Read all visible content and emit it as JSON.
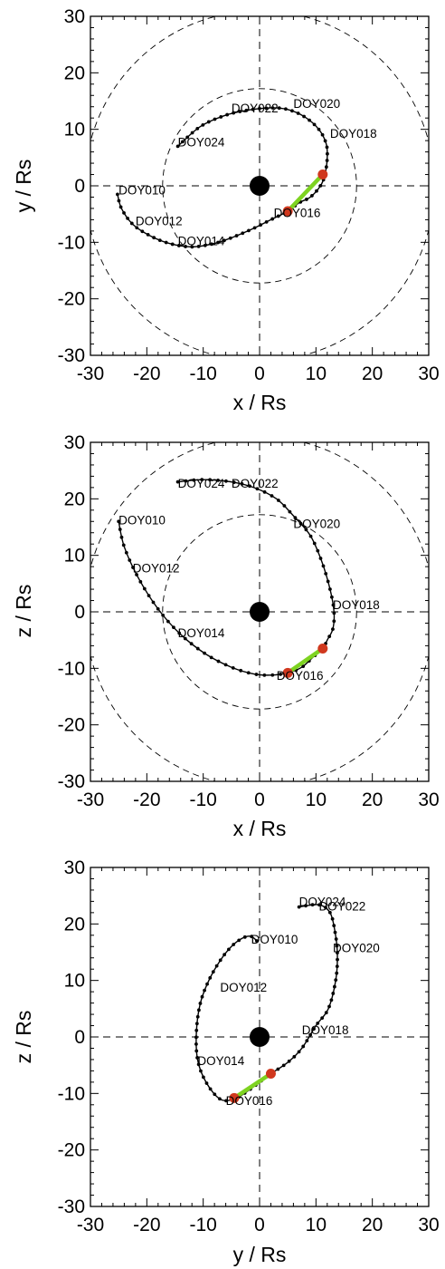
{
  "chart_data": [
    {
      "type": "scatter",
      "panel": "x-y",
      "xlabel": "x / Rs",
      "ylabel": "y / Rs",
      "xlim": [
        -30,
        30
      ],
      "ylim": [
        -30,
        30
      ],
      "xticks": [
        "-30",
        "-20",
        "-10",
        "0",
        "10",
        "20",
        "30"
      ],
      "yticks": [
        "-30",
        "-20",
        "-10",
        "0",
        "10",
        "20",
        "30"
      ],
      "orbit": {
        "x": [
          -14.5,
          -10.5,
          -6.0,
          -2.0,
          2.0,
          5.0,
          8.0,
          10.5,
          11.8,
          12.0,
          11.6,
          10.8,
          9.0,
          7.0,
          5.0,
          2.0,
          -1.0,
          -4.5,
          -8.0,
          -12.0,
          -16.0,
          -19.5,
          -22.5,
          -24.5,
          -25.2,
          -24.5,
          -21.5,
          -17.5,
          -13.0,
          -9.0,
          -4.5,
          0.0,
          3.0,
          5.0,
          7.0,
          9.0,
          10.5,
          11.2
        ],
        "y": [
          7.0,
          10.5,
          12.5,
          13.4,
          13.8,
          13.5,
          12.2,
          10.0,
          7.5,
          5.0,
          2.0,
          0.0,
          -2.0,
          -3.0,
          -4.5,
          -6.0,
          -7.5,
          -9.0,
          -10.2,
          -10.8,
          -10.2,
          -8.8,
          -6.8,
          -4.0,
          -1.5,
          -1.5,
          -4.0,
          -6.8,
          -8.8,
          -10.2,
          -10.8,
          -7.5,
          -6.0,
          -4.5,
          -3.0,
          -1.5,
          0.5,
          2.0
        ],
        "path_order": [
          0,
          1,
          2,
          3,
          4,
          5,
          6,
          7,
          8,
          9,
          10,
          11,
          12,
          13,
          14,
          15,
          16,
          17,
          18,
          19,
          20,
          21,
          22,
          23,
          24
        ]
      },
      "highlight_segment": {
        "x": [
          5.0,
          11.2
        ],
        "y": [
          -4.5,
          2.0
        ],
        "color": "#7ed321"
      },
      "markers": [
        {
          "x": 11.2,
          "y": 2.0,
          "color": "#d0381e"
        },
        {
          "x": 5.0,
          "y": -4.5,
          "color": "#d0381e"
        }
      ],
      "labels": [
        {
          "text": "DOY024",
          "x": -14.5,
          "y": 7.0
        },
        {
          "text": "DOY022",
          "x": -5.0,
          "y": 13.0
        },
        {
          "text": "DOY020",
          "x": 6.0,
          "y": 13.8
        },
        {
          "text": "DOY018",
          "x": 12.5,
          "y": 8.5
        },
        {
          "text": "DOY010",
          "x": -25.0,
          "y": -1.5
        },
        {
          "text": "DOY012",
          "x": -22.0,
          "y": -7.0
        },
        {
          "text": "DOY014",
          "x": -14.5,
          "y": -10.5
        },
        {
          "text": "DOY016",
          "x": 2.5,
          "y": -5.5
        }
      ],
      "planet_color": "#000000",
      "guide_curves": "dashed"
    },
    {
      "type": "scatter",
      "panel": "x-z",
      "xlabel": "x / Rs",
      "ylabel": "z / Rs",
      "xlim": [
        -30,
        30
      ],
      "ylim": [
        -30,
        30
      ],
      "xticks": [
        "-30",
        "-20",
        "-10",
        "0",
        "10",
        "20",
        "30"
      ],
      "yticks": [
        "-30",
        "-20",
        "-10",
        "0",
        "10",
        "20",
        "30"
      ],
      "orbit": {
        "x": [
          -14.5,
          -10.0,
          -5.0,
          -1.0,
          3.0,
          6.0,
          9.0,
          11.0,
          12.5,
          13.2,
          13.0,
          12.0,
          11.2,
          9.5,
          7.5,
          5.0,
          2.0,
          -1.0,
          -5.0,
          -9.5,
          -14.0,
          -18.0,
          -21.5,
          -24.0,
          -25.0
        ],
        "y": [
          23.0,
          23.4,
          23.0,
          22.0,
          20.0,
          17.0,
          13.5,
          9.0,
          4.0,
          0.0,
          -3.0,
          -5.0,
          -6.5,
          -8.0,
          -9.8,
          -10.8,
          -11.2,
          -11.0,
          -9.8,
          -7.5,
          -4.0,
          0.5,
          6.0,
          11.5,
          16.0
        ]
      },
      "highlight_segment": {
        "x": [
          5.0,
          11.2
        ],
        "y": [
          -10.8,
          -6.5
        ],
        "color": "#7ed321"
      },
      "markers": [
        {
          "x": 11.2,
          "y": -6.5,
          "color": "#d0381e"
        },
        {
          "x": 5.0,
          "y": -10.8,
          "color": "#d0381e"
        }
      ],
      "labels": [
        {
          "text": "DOY024",
          "x": -14.5,
          "y": 22.0
        },
        {
          "text": "DOY022",
          "x": -5.0,
          "y": 22.0
        },
        {
          "text": "DOY020",
          "x": 6.0,
          "y": 14.8
        },
        {
          "text": "DOY018",
          "x": 13.0,
          "y": 0.5
        },
        {
          "text": "DOY010",
          "x": -25.0,
          "y": 15.5
        },
        {
          "text": "DOY012",
          "x": -22.5,
          "y": 7.0
        },
        {
          "text": "DOY014",
          "x": -14.5,
          "y": -4.5
        },
        {
          "text": "DOY016",
          "x": 3.0,
          "y": -12.0
        }
      ],
      "planet_color": "#000000",
      "guide_curves": "dashed"
    },
    {
      "type": "scatter",
      "panel": "y-z",
      "xlabel": "y / Rs",
      "ylabel": "z / Rs",
      "xlim": [
        -30,
        30
      ],
      "ylim": [
        -30,
        30
      ],
      "xticks": [
        "-30",
        "-20",
        "-10",
        "0",
        "10",
        "20",
        "30"
      ],
      "yticks": [
        "-30",
        "-20",
        "-10",
        "0",
        "10",
        "20",
        "30"
      ],
      "orbit": {
        "x": [
          7.0,
          10.5,
          12.5,
          13.4,
          13.8,
          13.5,
          12.2,
          10.0,
          7.5,
          5.0,
          2.0,
          0.0,
          -2.0,
          -4.5,
          -7.0,
          -9.5,
          -11.0,
          -11.2,
          -10.5,
          -9.0,
          -7.0,
          -5.0,
          -3.0,
          -1.5,
          -0.5
        ],
        "y": [
          23.0,
          23.4,
          22.0,
          18.5,
          14.5,
          10.0,
          5.0,
          2.0,
          -2.0,
          -4.5,
          -6.5,
          -8.0,
          -9.5,
          -11.0,
          -11.0,
          -8.0,
          -4.0,
          1.0,
          6.0,
          10.0,
          13.5,
          16.0,
          17.5,
          17.8,
          17.0
        ]
      },
      "highlight_segment": {
        "x": [
          -4.5,
          2.0
        ],
        "y": [
          -10.8,
          -6.5
        ],
        "color": "#7ed321"
      },
      "markers": [
        {
          "x": 2.0,
          "y": -6.5,
          "color": "#d0381e"
        },
        {
          "x": -4.5,
          "y": -10.8,
          "color": "#d0381e"
        }
      ],
      "labels": [
        {
          "text": "DOY024",
          "x": 7.0,
          "y": 23.2
        },
        {
          "text": "DOY022",
          "x": 10.5,
          "y": 22.4
        },
        {
          "text": "DOY020",
          "x": 13.0,
          "y": 15.0
        },
        {
          "text": "DOY018",
          "x": 7.5,
          "y": 0.5
        },
        {
          "text": "DOY010",
          "x": -1.5,
          "y": 16.5
        },
        {
          "text": "DOY012",
          "x": -7.0,
          "y": 8.0
        },
        {
          "text": "DOY014",
          "x": -11.0,
          "y": -5.0
        },
        {
          "text": "DOY016",
          "x": -6.0,
          "y": -12.0
        }
      ],
      "planet_color": "#000000",
      "guide_curves": "none"
    }
  ],
  "colors": {
    "orbit": "#000000",
    "highlight": "#7ed321",
    "marker": "#d0381e"
  }
}
